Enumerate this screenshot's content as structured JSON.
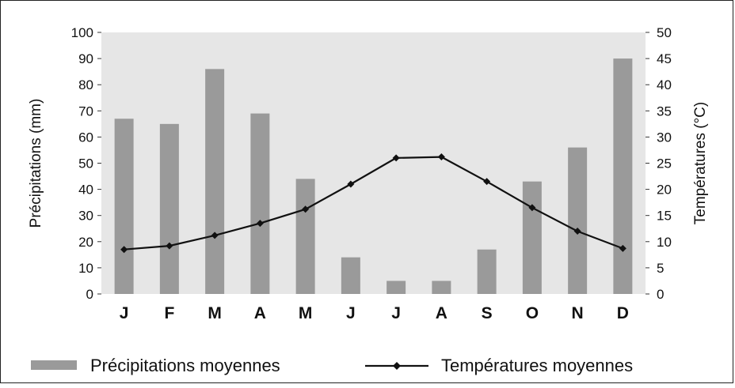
{
  "chart_data": {
    "type": "bar",
    "categories": [
      "J",
      "F",
      "M",
      "A",
      "M",
      "J",
      "J",
      "A",
      "S",
      "O",
      "N",
      "D"
    ],
    "series": [
      {
        "name": "Précipitations moyennes",
        "type": "bar",
        "axis": "left",
        "unit": "mm",
        "values": [
          67,
          65,
          86,
          69,
          44,
          14,
          5,
          5,
          17,
          43,
          56,
          90
        ]
      },
      {
        "name": "Températures moyennes",
        "type": "line",
        "axis": "right",
        "unit": "°C",
        "values": [
          8.5,
          9.2,
          11.2,
          13.5,
          16.2,
          21,
          26,
          26.2,
          21.5,
          16.5,
          12,
          8.7
        ]
      }
    ],
    "ylabel_left": "Précipitations (mm)",
    "ylabel_right": "Températures (°C)",
    "ylim_left": [
      0,
      100
    ],
    "ylim_right": [
      0,
      50
    ],
    "yticks_left": [
      "0",
      "10",
      "20",
      "30",
      "40",
      "50",
      "60",
      "70",
      "80",
      "90",
      "100"
    ],
    "yticks_right": [
      "0",
      "5",
      "10",
      "15",
      "20",
      "25",
      "30",
      "35",
      "40",
      "45",
      "50"
    ],
    "grid": false,
    "legend_position": "bottom",
    "colors": {
      "plot_background": "#e6e6e6",
      "bars": "#9a9a9a",
      "line": "#111111",
      "markers": "#111111"
    }
  }
}
